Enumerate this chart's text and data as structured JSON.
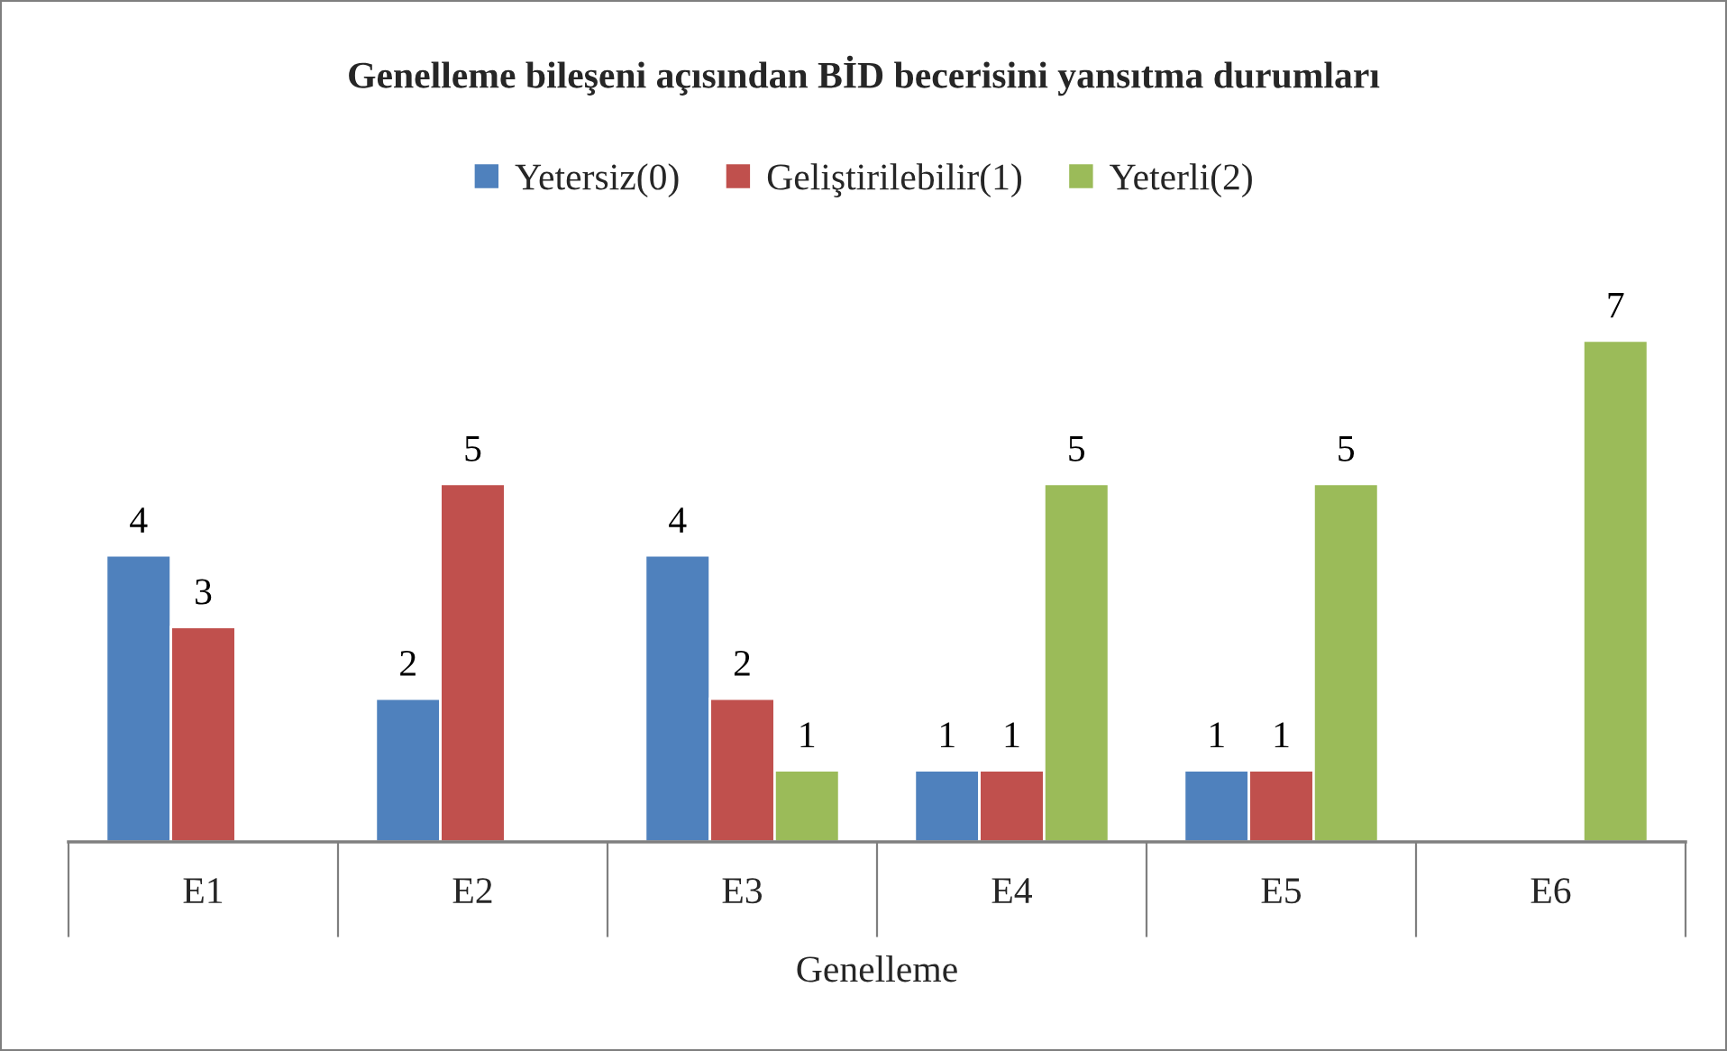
{
  "chart_data": {
    "type": "bar",
    "title": "Genelleme bileşeni açısından BİD becerisini yansıtma durumları",
    "xlabel": "Genelleme",
    "categories": [
      "E1",
      "E2",
      "E3",
      "E4",
      "E5",
      "E6"
    ],
    "series": [
      {
        "name": "Yetersiz(0)",
        "color": "#4f81bd",
        "values": [
          4,
          2,
          4,
          1,
          1,
          null
        ]
      },
      {
        "name": "Geliştirilebilir(1)",
        "color": "#c0504d",
        "values": [
          3,
          5,
          2,
          1,
          1,
          null
        ]
      },
      {
        "name": "Yeterli(2)",
        "color": "#9bbb59",
        "values": [
          null,
          null,
          1,
          5,
          5,
          7
        ]
      }
    ],
    "data_labels": true,
    "legend": "top",
    "grid": false
  }
}
